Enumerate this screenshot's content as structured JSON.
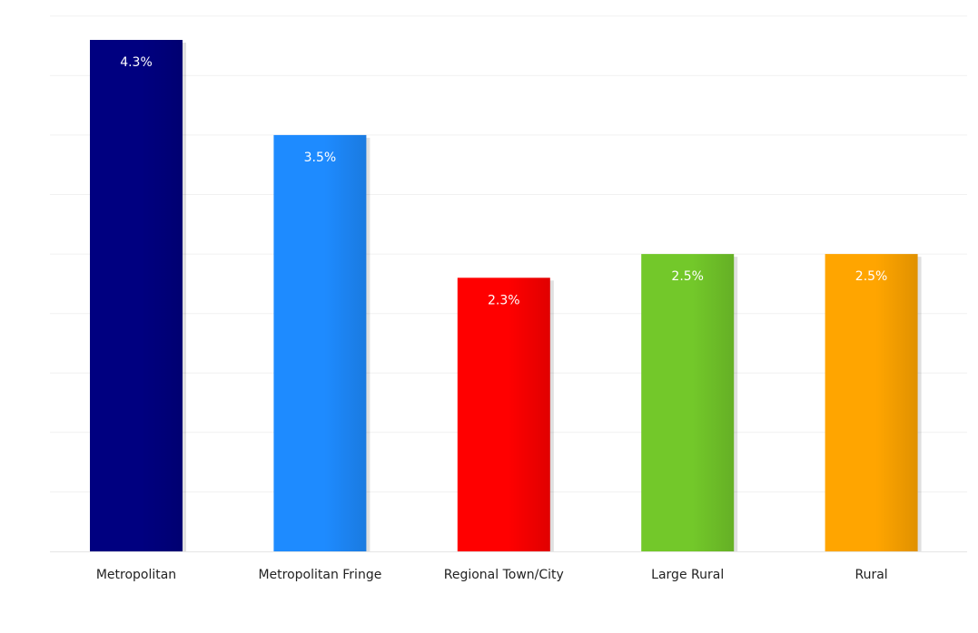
{
  "chart_data": {
    "type": "bar",
    "title": "",
    "xlabel": "",
    "ylabel": "",
    "categories": [
      "Metropolitan",
      "Metropolitan Fringe",
      "Regional Town/City",
      "Large Rural",
      "Rural"
    ],
    "values": [
      4.3,
      3.5,
      2.3,
      2.5,
      2.5
    ],
    "value_labels": [
      "4.3%",
      "3.5%",
      "2.3%",
      "2.5%",
      "2.5%"
    ],
    "colors": [
      "#000080",
      "#1e8bff",
      "#ff0000",
      "#73c82a",
      "#ffa500"
    ],
    "ylim": [
      0,
      4.5
    ],
    "grid": true,
    "legend": "none"
  }
}
